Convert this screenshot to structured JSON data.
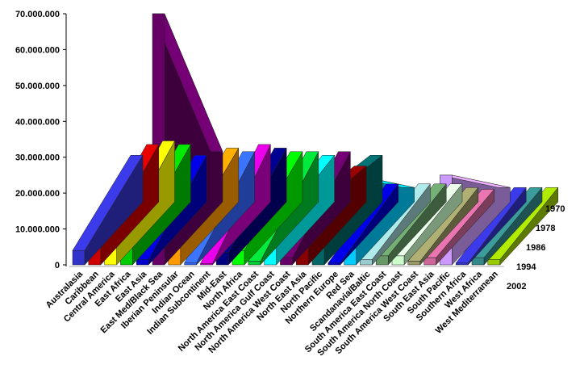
{
  "chart_data": {
    "type": "area",
    "view": "3d-stacked-ribbons",
    "ylim": [
      0,
      70000000
    ],
    "y_ticks": [
      "0",
      "10.000.000",
      "20.000.000",
      "30.000.000",
      "40.000.000",
      "50.000.000",
      "60.000.000",
      "70.000.000"
    ],
    "y_tick_values": [
      0,
      10000000,
      20000000,
      30000000,
      40000000,
      50000000,
      60000000,
      70000000
    ],
    "depth_axis_labels": [
      "1970",
      "1978",
      "1986",
      "1994",
      "2002"
    ],
    "depth_axis_values": [
      1970,
      1978,
      1986,
      1994,
      2002
    ],
    "categories": [
      "Australasia",
      "Caribbean",
      "Central America",
      "East Africa",
      "East Asia",
      "East Med/Black Sea",
      "Iberian Peninsular",
      "Indian Ocean",
      "Indian Subcontinent",
      "Mid-East",
      "North Africa",
      "North America East Coast",
      "North America Gulf Coast",
      "North America West Coast",
      "North East Asia",
      "North Pacific",
      "Northern Europe",
      "Red Sea",
      "Scandanavia/Baltic",
      "South America East Coast",
      "South America North Coast",
      "South America West Coast",
      "South East Asia",
      "South Pacific",
      "Southern Africa",
      "West Africa",
      "West Mediterranean"
    ],
    "series_values_front": [
      4000000,
      5000000,
      5000000,
      5000000,
      1500000,
      70000000,
      5000000,
      500000,
      300000,
      3500000,
      4000000,
      1000000,
      10000000,
      2000000,
      14000000,
      18000000,
      500000,
      25000000,
      1500000,
      2500000,
      2500000,
      1000000,
      2000000,
      25000000,
      500000,
      2000000,
      1500000
    ],
    "series_values_back": [
      13000000,
      16000000,
      17000000,
      16000000,
      13000000,
      14000000,
      15000000,
      14000000,
      16000000,
      15000000,
      14000000,
      14000000,
      13000000,
      14000000,
      10000000,
      13000000,
      5000000,
      4000000,
      5000000,
      5000000,
      5000000,
      4000000,
      3500000,
      4000000,
      4000000,
      4000000,
      4000000
    ],
    "colors": [
      "#3333cc",
      "#cc0000",
      "#ffff00",
      "#00cc00",
      "#0000cc",
      "#660066",
      "#ff9900",
      "#3366ff",
      "#cc00cc",
      "#000080",
      "#00ff00",
      "#00cc33",
      "#00ffff",
      "#660066",
      "#880000",
      "#006666",
      "#0000cc",
      "#00ccff",
      "#99cccc",
      "#669966",
      "#ccffcc",
      "#999966",
      "#cc6699",
      "#cc99ff",
      "#3333cc",
      "#338888",
      "#99cc00"
    ],
    "grid": false,
    "legend": "none"
  }
}
